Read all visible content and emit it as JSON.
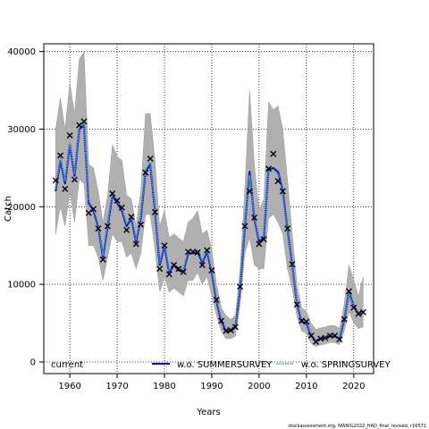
{
  "chart_data": {
    "type": "line",
    "xlabel": "Years",
    "ylabel": "Catch",
    "xlim": [
      1954.5,
      2024.2
    ],
    "ylim": [
      -1500,
      41000
    ],
    "xticks": [
      1960,
      1970,
      1980,
      1990,
      2000,
      2010,
      2020
    ],
    "yticks": [
      0,
      10000,
      20000,
      30000,
      40000
    ],
    "grid": true,
    "legend_position": "bottom",
    "footnote": "stockassessment.org, NWWG2022_HAD_final_revised, r16571",
    "colors": {
      "band": "#b0b0b0",
      "current": "#000000",
      "summer": "#1a1aa0",
      "spring": "#4ea6e8",
      "grid": "#000000"
    },
    "years": [
      1957,
      1958,
      1959,
      1960,
      1961,
      1962,
      1963,
      1964,
      1965,
      1966,
      1967,
      1968,
      1969,
      1970,
      1971,
      1972,
      1973,
      1974,
      1975,
      1976,
      1977,
      1978,
      1979,
      1980,
      1981,
      1982,
      1983,
      1984,
      1985,
      1986,
      1987,
      1988,
      1989,
      1990,
      1991,
      1992,
      1993,
      1994,
      1995,
      1996,
      1997,
      1998,
      1999,
      2000,
      2001,
      2002,
      2003,
      2004,
      2005,
      2006,
      2007,
      2008,
      2009,
      2010,
      2011,
      2012,
      2013,
      2014,
      2015,
      2016,
      2017,
      2018,
      2019,
      2020,
      2021,
      2022
    ],
    "observed": [
      23400,
      26600,
      22300,
      29200,
      23500,
      30500,
      31000,
      19200,
      19700,
      17200,
      13200,
      17500,
      21700,
      20800,
      19900,
      17000,
      18700,
      15200,
      17700,
      24400,
      26200,
      19300,
      12000,
      15000,
      11300,
      12500,
      12000,
      11600,
      14200,
      14200,
      14100,
      12500,
      14400,
      11800,
      8000,
      5300,
      4000,
      4100,
      4500,
      9700,
      17500,
      22000,
      18600,
      15200,
      15800,
      24900,
      26800,
      23300,
      22000,
      17200,
      12600,
      7400,
      5300,
      5200,
      3400,
      2600,
      3000,
      3100,
      3400,
      3400,
      2900,
      5500,
      9100,
      7000,
      6200,
      6400
    ],
    "series": [
      {
        "name": "current",
        "values": [
          22000,
          26000,
          23000,
          28000,
          24000,
          30000,
          30500,
          20500,
          19500,
          17500,
          13500,
          17500,
          21500,
          20500,
          19500,
          17500,
          18500,
          15500,
          18500,
          24500,
          25500,
          19500,
          12500,
          15000,
          11500,
          12500,
          11800,
          11600,
          14000,
          14000,
          14200,
          12800,
          14200,
          11500,
          7800,
          5300,
          4000,
          4000,
          4500,
          9500,
          17500,
          24500,
          18500,
          15500,
          16000,
          24800,
          25000,
          24500,
          22000,
          17000,
          12500,
          7500,
          5200,
          5000,
          3400,
          2700,
          3000,
          3100,
          3300,
          3300,
          3000,
          5500,
          9000,
          7200,
          6200,
          6500
        ]
      },
      {
        "name": "w.o. SUMMERSURVEY",
        "values": [
          22000,
          26000,
          23000,
          28000,
          24000,
          30000,
          30500,
          20500,
          19500,
          17500,
          13500,
          17500,
          21500,
          20500,
          19500,
          17500,
          18500,
          15500,
          18500,
          24500,
          25500,
          19500,
          12500,
          15000,
          11500,
          12500,
          11800,
          11600,
          14000,
          14000,
          14200,
          12800,
          14200,
          11500,
          7800,
          5300,
          4000,
          4000,
          4500,
          9500,
          17500,
          24500,
          18500,
          15500,
          16000,
          24800,
          25000,
          24500,
          22000,
          17000,
          12500,
          7500,
          5200,
          5000,
          3400,
          2700,
          3000,
          3100,
          3300,
          3300,
          3000,
          5500,
          9000,
          7200,
          6200,
          6500
        ]
      },
      {
        "name": "w.o. SPRINGSURVEY",
        "values": [
          22300,
          26300,
          23300,
          28300,
          24300,
          30300,
          30800,
          20800,
          19800,
          17800,
          13800,
          17800,
          21800,
          20800,
          19800,
          17800,
          18800,
          15800,
          18800,
          24800,
          25800,
          19800,
          12800,
          15300,
          11800,
          12800,
          12100,
          11900,
          14300,
          14300,
          14500,
          13100,
          14500,
          11800,
          8100,
          5600,
          4300,
          4300,
          4800,
          9800,
          17800,
          24000,
          18800,
          15800,
          16300,
          24500,
          24600,
          24200,
          21700,
          16700,
          12300,
          7700,
          5400,
          5200,
          3600,
          2900,
          3200,
          3300,
          3500,
          3500,
          3200,
          5700,
          8800,
          7000,
          6100,
          6400
        ]
      }
    ],
    "ci_upper": [
      30000,
      34000,
      30000,
      36000,
      32000,
      39000,
      40000,
      25500,
      25000,
      22000,
      18000,
      21500,
      28000,
      26500,
      26000,
      21500,
      21000,
      17500,
      22000,
      32000,
      32000,
      26000,
      17500,
      19500,
      16000,
      16500,
      16000,
      15500,
      18000,
      18500,
      19500,
      16500,
      17000,
      14500,
      10000,
      7000,
      6000,
      5500,
      6000,
      12000,
      22500,
      35000,
      25500,
      19500,
      21000,
      33500,
      32500,
      33000,
      30000,
      23500,
      16500,
      10000,
      7000,
      6500,
      5000,
      4200,
      4400,
      4500,
      4700,
      4700,
      4300,
      7500,
      12500,
      10500,
      8500,
      11000
    ],
    "ci_lower": [
      16500,
      20000,
      17500,
      22000,
      18000,
      23500,
      23000,
      15000,
      15000,
      13500,
      10500,
      13500,
      16500,
      15500,
      15500,
      13500,
      14000,
      12000,
      14000,
      19000,
      19000,
      14500,
      9000,
      11000,
      9000,
      9500,
      9000,
      8500,
      10500,
      10500,
      11500,
      10000,
      11000,
      8500,
      6000,
      4000,
      3000,
      3000,
      3300,
      7500,
      14000,
      16000,
      12500,
      12000,
      12000,
      18500,
      19000,
      18000,
      16500,
      12000,
      9500,
      5800,
      4000,
      3700,
      2400,
      2000,
      2200,
      2300,
      2500,
      2500,
      2200,
      4000,
      6500,
      5000,
      4300,
      4500
    ]
  },
  "legend": {
    "items": [
      {
        "label": "current"
      },
      {
        "label": "w.o. SUMMERSURVEY"
      },
      {
        "label": "w.o. SPRINGSURVEY"
      }
    ]
  }
}
